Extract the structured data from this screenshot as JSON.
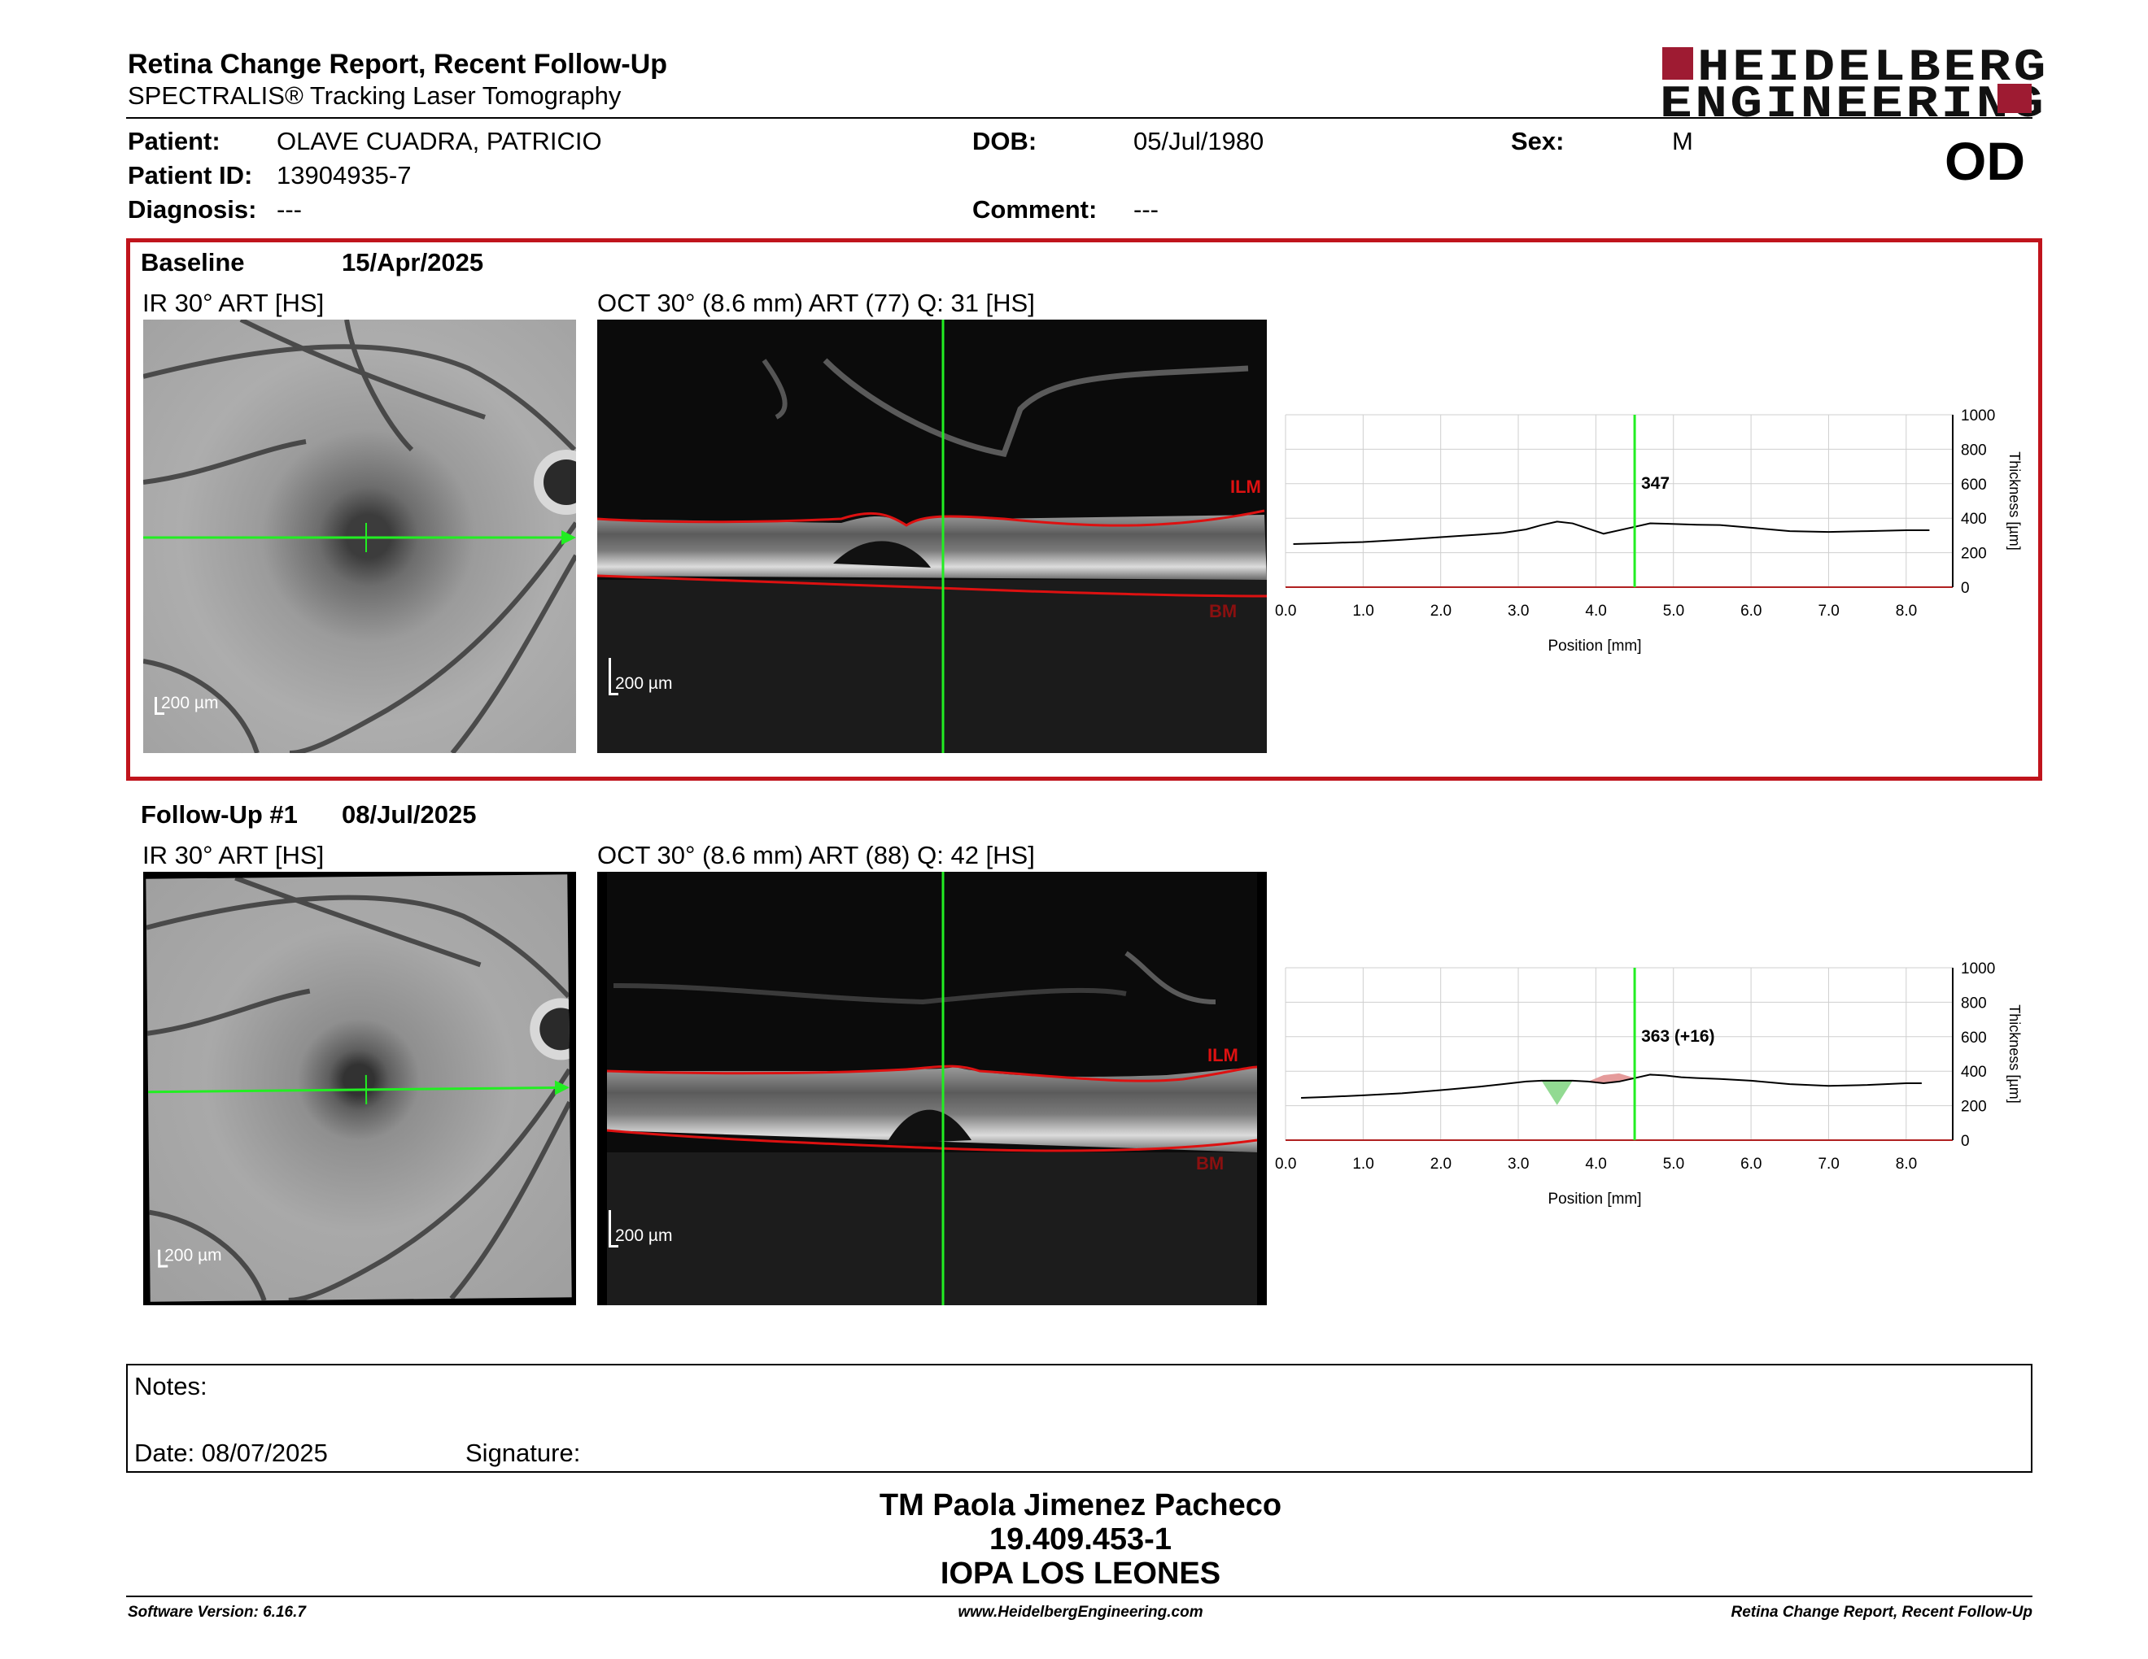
{
  "header": {
    "title": "Retina Change Report, Recent Follow-Up",
    "subtitle": "SPECTRALIS® Tracking Laser Tomography",
    "logo_line1": "HEIDELBERG",
    "logo_line2": "ENGINEERING",
    "eye": "OD"
  },
  "patient": {
    "name_label": "Patient:",
    "name": "OLAVE CUADRA, PATRICIO",
    "id_label": "Patient ID:",
    "id": "13904935-7",
    "diagnosis_label": "Diagnosis:",
    "diagnosis": "---",
    "dob_label": "DOB:",
    "dob": "05/Jul/1980",
    "comment_label": "Comment:",
    "comment": "---",
    "sex_label": "Sex:",
    "sex": "M"
  },
  "exams": [
    {
      "label": "Baseline",
      "date": "15/Apr/2025",
      "ir_title": "IR 30° ART [HS]",
      "oct_title": "OCT 30° (8.6 mm) ART (77) Q: 31 [HS]",
      "scale": "200 µm",
      "ilm": "ILM",
      "bm": "BM",
      "marker_value": "347"
    },
    {
      "label": "Follow-Up #1",
      "date": "08/Jul/2025",
      "ir_title": "IR 30° ART [HS]",
      "oct_title": "OCT 30° (8.6 mm) ART (88) Q: 42 [HS]",
      "scale": "200 µm",
      "ilm": "ILM",
      "bm": "BM",
      "marker_value": "363 (+16)"
    }
  ],
  "chart_data": [
    {
      "type": "line",
      "title": "",
      "xlabel": "Position [mm]",
      "ylabel": "Thickness [µm]",
      "xlim": [
        0,
        8.6
      ],
      "ylim": [
        0,
        1000
      ],
      "x_ticks": [
        "0.0",
        "1.0",
        "2.0",
        "3.0",
        "4.0",
        "5.0",
        "6.0",
        "7.0",
        "8.0"
      ],
      "y_ticks": [
        "0",
        "200",
        "400",
        "600",
        "800",
        "1000"
      ],
      "grid": true,
      "marker_x": 4.5,
      "marker_label": "347",
      "series": [
        {
          "x": [
            0.1,
            0.5,
            1.0,
            1.5,
            2.0,
            2.5,
            2.8,
            3.1,
            3.3,
            3.5,
            3.7,
            3.9,
            4.1,
            4.3,
            4.5,
            4.7,
            4.9,
            5.1,
            5.3,
            5.6,
            6.0,
            6.5,
            7.0,
            7.5,
            8.0,
            8.3
          ],
          "y": [
            250,
            255,
            262,
            275,
            290,
            305,
            315,
            335,
            360,
            380,
            370,
            340,
            310,
            330,
            350,
            370,
            368,
            365,
            362,
            360,
            345,
            325,
            320,
            325,
            330,
            330
          ],
          "color": "#000000"
        }
      ]
    },
    {
      "type": "line",
      "title": "",
      "xlabel": "Position [mm]",
      "ylabel": "Thickness [µm]",
      "xlim": [
        0,
        8.6
      ],
      "ylim": [
        0,
        1000
      ],
      "x_ticks": [
        "0.0",
        "1.0",
        "2.0",
        "3.0",
        "4.0",
        "5.0",
        "6.0",
        "7.0",
        "8.0"
      ],
      "y_ticks": [
        "0",
        "200",
        "400",
        "600",
        "800",
        "1000"
      ],
      "grid": true,
      "marker_x": 4.5,
      "marker_label": "363 (+16)",
      "series": [
        {
          "x": [
            0.2,
            0.5,
            1.0,
            1.5,
            2.0,
            2.5,
            2.8,
            3.1,
            3.3,
            3.5,
            3.7,
            3.9,
            4.1,
            4.3,
            4.5,
            4.7,
            4.9,
            5.1,
            5.3,
            5.6,
            6.0,
            6.5,
            7.0,
            7.5,
            8.0,
            8.2
          ],
          "y": [
            245,
            250,
            260,
            272,
            290,
            310,
            325,
            340,
            345,
            345,
            345,
            340,
            330,
            340,
            360,
            380,
            375,
            365,
            360,
            355,
            345,
            325,
            315,
            320,
            330,
            330
          ],
          "color": "#000000"
        }
      ],
      "change_regions": [
        {
          "from": 3.2,
          "to": 3.8,
          "direction": "increase",
          "color": "#7fd47f"
        },
        {
          "from": 3.9,
          "to": 4.5,
          "direction": "decrease",
          "color": "#e08a8a"
        }
      ]
    }
  ],
  "notes": {
    "label": "Notes:",
    "date_label": "Date: 08/07/2025",
    "signature_label": "Signature:"
  },
  "signatory": {
    "name": "TM Paola Jimenez Pacheco",
    "id": "19.409.453-1",
    "institution": "IOPA LOS LEONES"
  },
  "footer": {
    "version": "Software Version: 6.16.7",
    "website": "www.HeidelbergEngineering.com",
    "report": "Retina Change Report, Recent Follow-Up"
  },
  "colors": {
    "panel_border": "#c0141c",
    "scan_line": "#22ee22",
    "layer_line": "#dd1111",
    "logo": "#9e1b32"
  }
}
